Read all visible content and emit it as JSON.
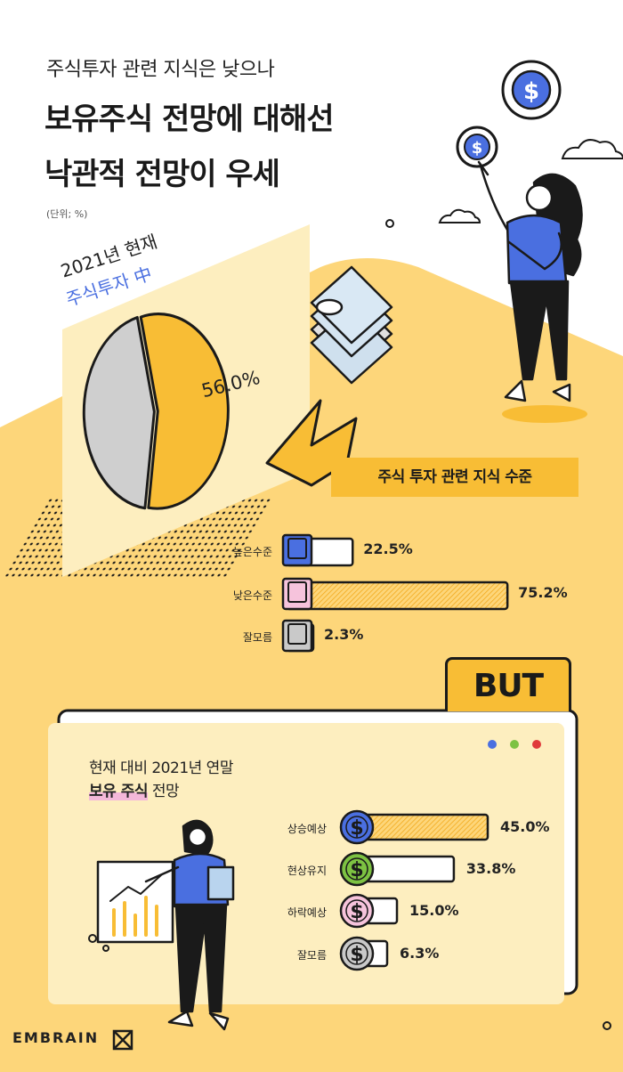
{
  "header": {
    "subtitle": "주식투자 관련 지식은 낮으나",
    "title_line1": "보유주식 전망에 대해선",
    "title_line2": "낙관적 전망이 우세",
    "unit": "(단위; %)"
  },
  "pie_labels": {
    "year": "2021년 현재",
    "scope": "주식투자 中"
  },
  "knowledge": {
    "title": "주식 투자 관련 지식 수준"
  },
  "but_label": "BUT",
  "outlook": {
    "title_line1": "현재 대비 2021년 연말",
    "title_highlight": "보유 주식",
    "title_suffix": " 전망"
  },
  "logo": "EMBRAIN",
  "colors": {
    "accent_yellow": "#f8bd35",
    "light_yellow": "#fdd67a",
    "panel_cream": "#fdeebf",
    "blue": "#4a6fe0",
    "green": "#7dc242",
    "pink": "#f6c3dc",
    "gray": "#c9c9c9",
    "dark": "#1a1a1a"
  },
  "chart_data": [
    {
      "type": "pie",
      "slices": [
        {
          "label": "56.0%",
          "value": 56.0
        },
        {
          "label": "",
          "value": 44.0
        }
      ]
    },
    {
      "type": "bar",
      "title": "주식 투자 관련 지식 수준",
      "categories": [
        "높은수준",
        "낮은수준",
        "잘모름"
      ],
      "values": [
        22.5,
        75.2,
        2.3
      ],
      "value_labels": [
        "22.5%",
        "75.2%",
        "2.3%"
      ]
    },
    {
      "type": "bar",
      "title": "현재 대비 2021년 연말 보유 주식 전망",
      "categories": [
        "상승예상",
        "현상유지",
        "하락예상",
        "잘모름"
      ],
      "values": [
        45.0,
        33.8,
        15.0,
        6.3
      ],
      "value_labels": [
        "45.0%",
        "33.8%",
        "15.0%",
        "6.3%"
      ]
    }
  ]
}
